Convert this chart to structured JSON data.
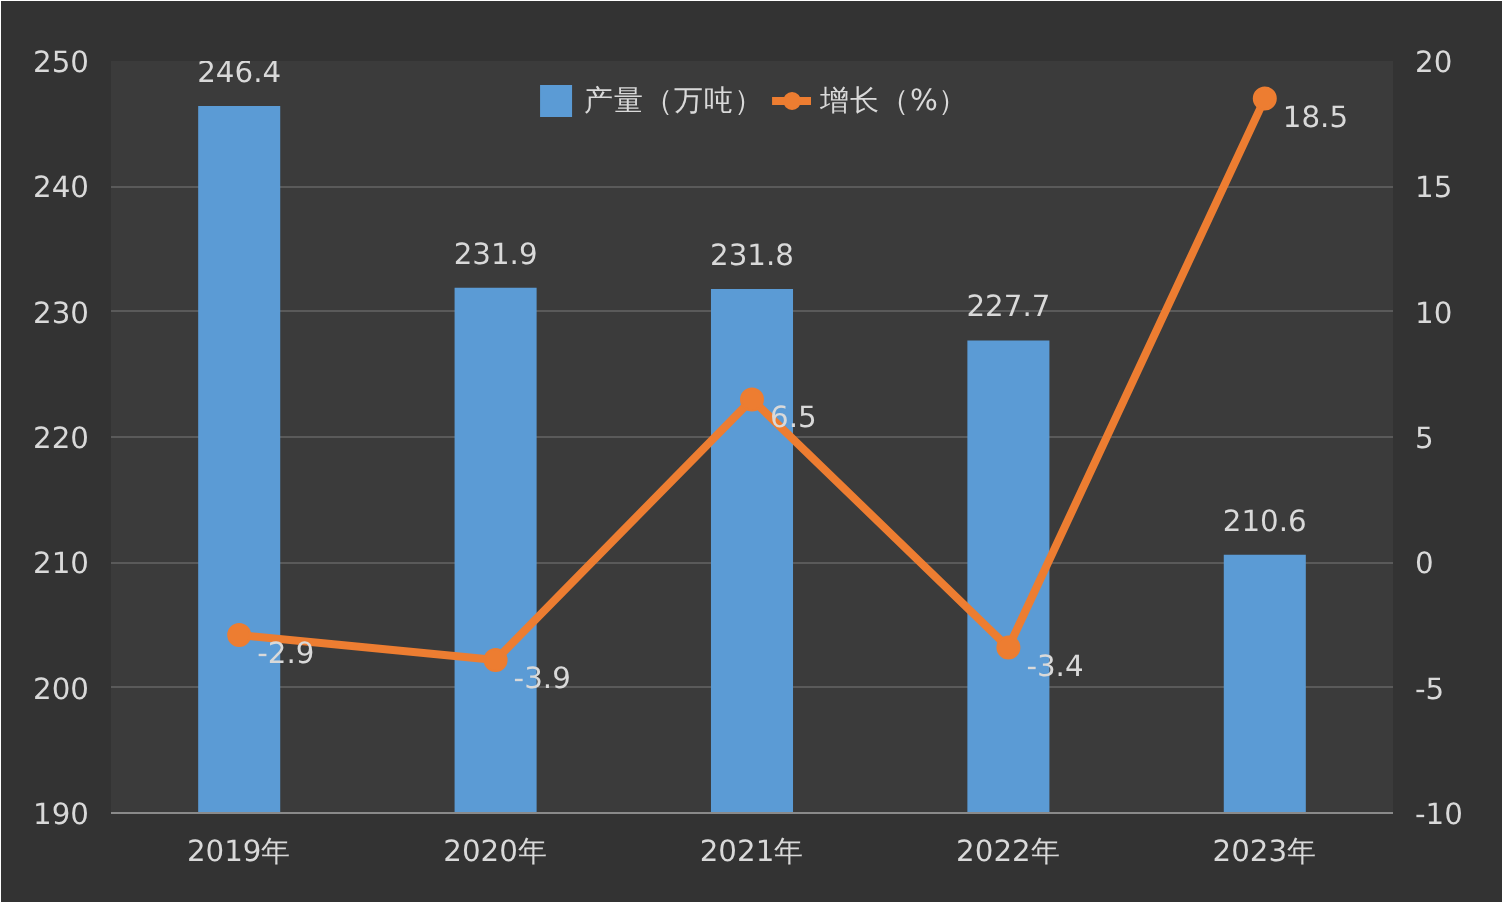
{
  "chart_data": {
    "type": "bar",
    "categories": [
      "2019年",
      "2020年",
      "2021年",
      "2022年",
      "2023年"
    ],
    "series": [
      {
        "name": "产量（万吨）",
        "color": "#5b9bd5",
        "values": [
          246.4,
          231.9,
          231.8,
          227.7,
          210.6
        ]
      },
      {
        "name": "增长（%）",
        "type": "line",
        "axis": "y2",
        "color": "#ed7d31",
        "values": [
          -2.9,
          -3.9,
          6.5,
          -3.4,
          18.5
        ]
      }
    ],
    "ylim": [
      190,
      250
    ],
    "yticks": [
      190,
      200,
      210,
      220,
      230,
      240,
      250
    ],
    "y2lim": [
      -10,
      20
    ],
    "y2ticks": [
      -10,
      -5,
      0,
      5,
      10,
      15,
      20
    ],
    "grid": "y",
    "legend": "top",
    "marker": "circle",
    "line_style": "solid",
    "data_labels": true
  }
}
